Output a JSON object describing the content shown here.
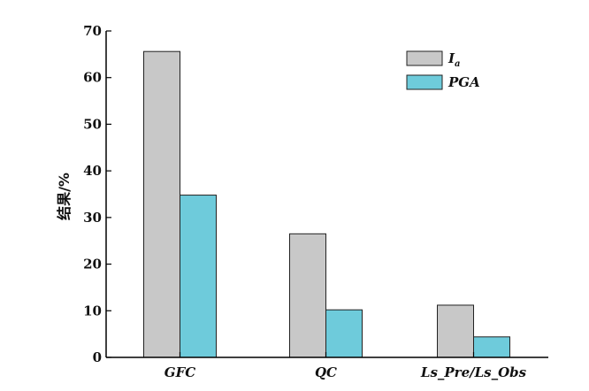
{
  "chart_data": {
    "type": "bar",
    "title": "",
    "xlabel": "",
    "ylabel": "结果/%",
    "ylim": [
      0,
      70
    ],
    "yticks": [
      0,
      10,
      20,
      30,
      40,
      50,
      60,
      70
    ],
    "categories": [
      "GFC",
      "QC",
      "Ls_Pre/Ls_Obs"
    ],
    "series": [
      {
        "name": "I",
        "name_subscript": "a",
        "color": "#c8c8c8",
        "values": [
          65.6,
          26.5,
          11.2
        ]
      },
      {
        "name": "PGA",
        "color": "#6ecbdb",
        "values": [
          34.8,
          10.2,
          4.4
        ]
      }
    ],
    "legend": "top-right",
    "grid": false
  }
}
